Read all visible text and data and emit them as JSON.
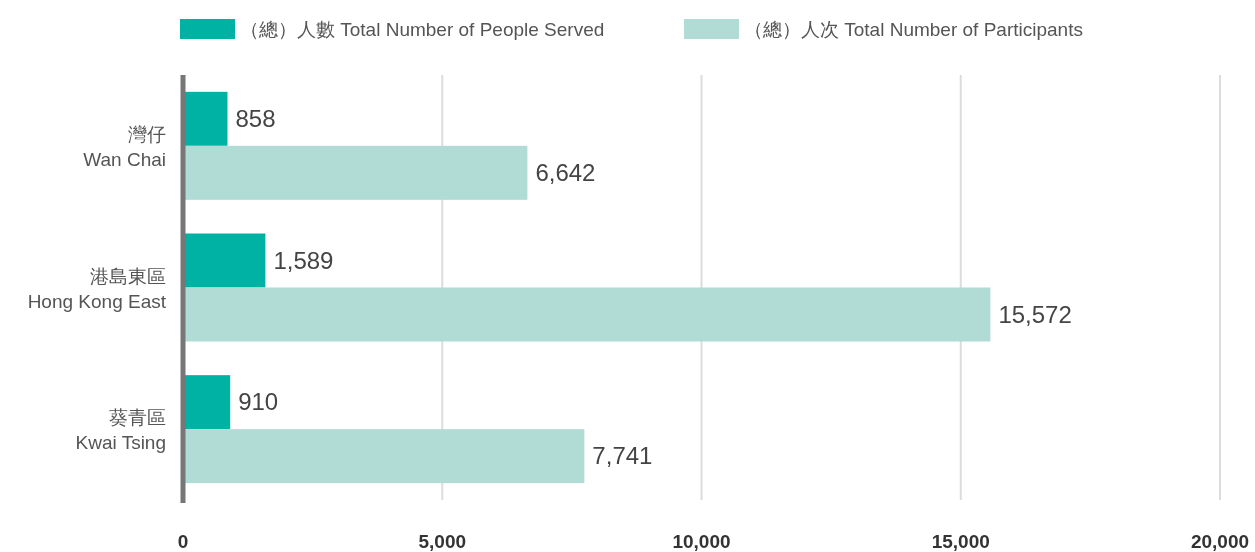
{
  "chart_data": {
    "type": "bar",
    "orientation": "horizontal",
    "categories": [
      "灣仔\nWan Chai",
      "港島東區\nHong Kong East",
      "葵青區\nKwai Tsing"
    ],
    "series": [
      {
        "name": "（總）人數  Total Number of  People Served",
        "color": "#00b2a3",
        "values": [
          858,
          1589,
          910
        ],
        "value_labels": [
          "858",
          "1,589",
          "910"
        ]
      },
      {
        "name": "（總）人次  Total Number of Participants",
        "color": "#b0dcd5",
        "values": [
          6642,
          15572,
          7741
        ],
        "value_labels": [
          "6,642",
          "15,572",
          "7,741"
        ]
      }
    ],
    "xlim": [
      0,
      20000
    ],
    "xticks": [
      {
        "value": 0,
        "label": "0"
      },
      {
        "value": 5000,
        "label": "5,000"
      },
      {
        "value": 10000,
        "label": "10,000"
      },
      {
        "value": 15000,
        "label": "15,000"
      },
      {
        "value": 20000,
        "label": "20,000"
      }
    ],
    "grid": "x",
    "legend": "top"
  }
}
